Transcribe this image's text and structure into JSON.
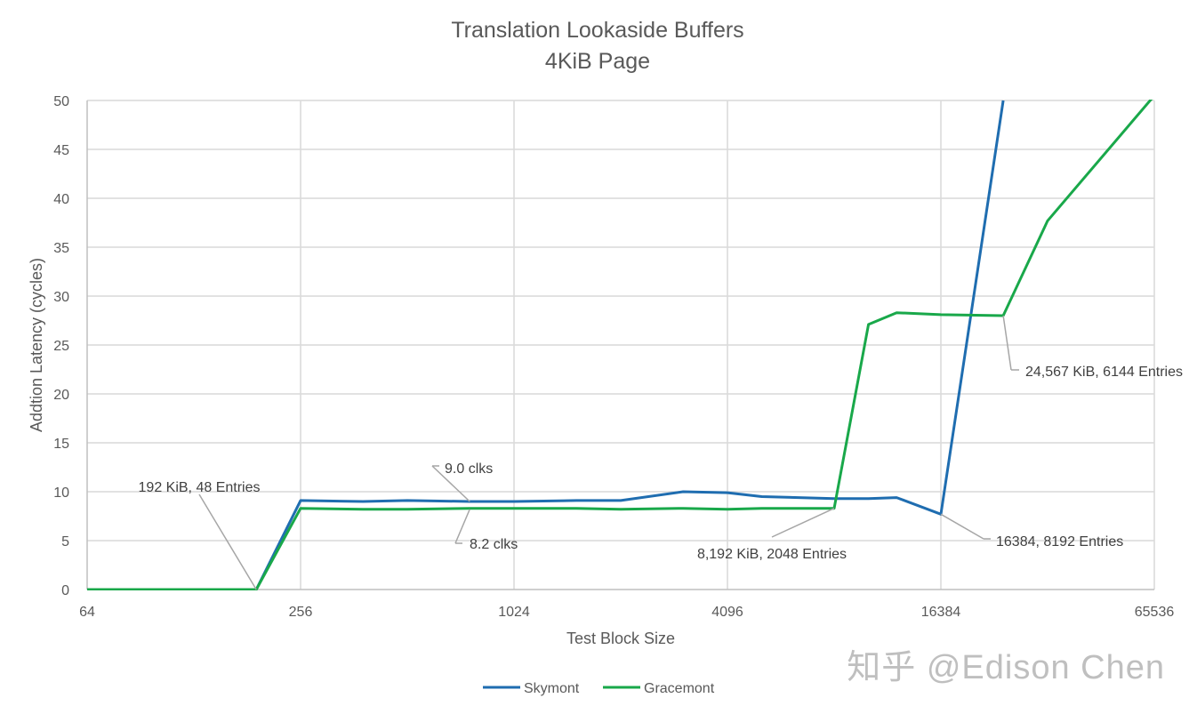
{
  "chart_data": {
    "type": "line",
    "title": "Translation Lookaside Buffers",
    "subtitle": "4KiB Page",
    "xlabel": "Test Block Size",
    "ylabel": "Addtion Latency (cycles)",
    "x_scale": "log2",
    "xlim": [
      64,
      65536
    ],
    "ylim": [
      0,
      50
    ],
    "x_ticks": [
      "64",
      "256",
      "1024",
      "4096",
      "16384",
      "65536"
    ],
    "y_ticks": [
      "0",
      "5",
      "10",
      "15",
      "20",
      "25",
      "30",
      "35",
      "40",
      "45",
      "50"
    ],
    "grid": true,
    "legend_position": "bottom",
    "series": [
      {
        "name": "Skymont",
        "color": "#1f6db0",
        "points": [
          [
            64,
            0
          ],
          [
            192,
            0
          ],
          [
            256,
            9.1
          ],
          [
            384,
            9.0
          ],
          [
            512,
            9.1
          ],
          [
            768,
            9.0
          ],
          [
            1024,
            9.0
          ],
          [
            1536,
            9.1
          ],
          [
            2048,
            9.1
          ],
          [
            3072,
            10.0
          ],
          [
            4096,
            9.9
          ],
          [
            5120,
            9.5
          ],
          [
            8192,
            9.3
          ],
          [
            10240,
            9.3
          ],
          [
            12288,
            9.4
          ],
          [
            16384,
            7.7
          ],
          [
            24567,
            50
          ]
        ]
      },
      {
        "name": "Gracemont",
        "color": "#19a84a",
        "points": [
          [
            64,
            0
          ],
          [
            192,
            0
          ],
          [
            256,
            8.3
          ],
          [
            384,
            8.2
          ],
          [
            512,
            8.2
          ],
          [
            768,
            8.3
          ],
          [
            1024,
            8.3
          ],
          [
            1536,
            8.3
          ],
          [
            2048,
            8.2
          ],
          [
            3072,
            8.3
          ],
          [
            4096,
            8.2
          ],
          [
            5120,
            8.3
          ],
          [
            8192,
            8.3
          ],
          [
            10240,
            27.1
          ],
          [
            12288,
            28.3
          ],
          [
            16384,
            28.1
          ],
          [
            24567,
            28.0
          ],
          [
            32768,
            37.7
          ],
          [
            65536,
            50.5
          ]
        ]
      }
    ],
    "annotations": [
      {
        "text": "192  KiB, 48 Entries",
        "at": [
          192,
          0
        ]
      },
      {
        "text": "9.0 clks",
        "at": [
          768,
          9.0
        ]
      },
      {
        "text": "8.2 clks",
        "at": [
          768,
          8.2
        ]
      },
      {
        "text": "8,192  KiB, 2048 Entries",
        "at": [
          8192,
          8.3
        ]
      },
      {
        "text": "16384, 8192 Entries",
        "at": [
          16384,
          7.7
        ]
      },
      {
        "text": "24,567 KiB, 6144 Entries",
        "at": [
          24567,
          28.0
        ]
      }
    ],
    "watermark": "知乎 @Edison Chen"
  }
}
